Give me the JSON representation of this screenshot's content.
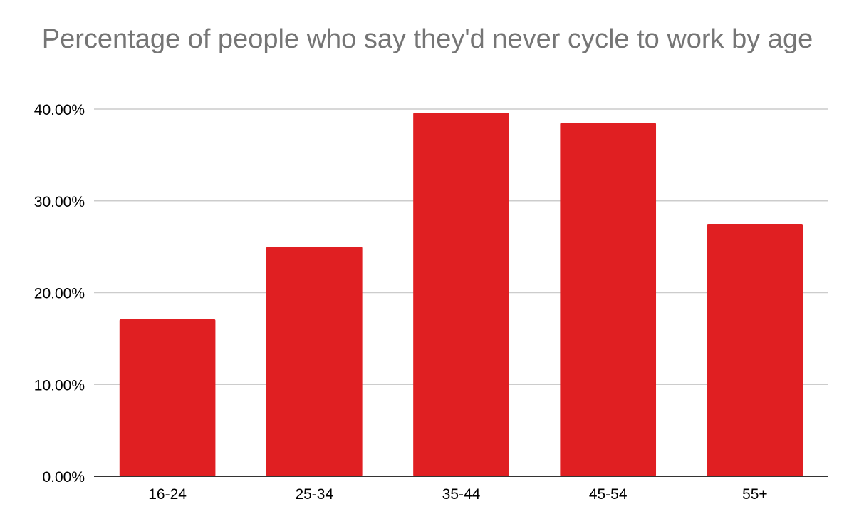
{
  "chart_data": {
    "type": "bar",
    "title": "Percentage of people who say they'd never cycle to work by age",
    "xlabel": "",
    "ylabel": "",
    "categories": [
      "16-24",
      "25-34",
      "35-44",
      "45-54",
      "55+"
    ],
    "values": [
      17.1,
      25.0,
      39.6,
      38.5,
      27.5
    ],
    "ylim": [
      0,
      40
    ],
    "yticks": [
      0,
      10,
      20,
      30,
      40
    ],
    "ytick_labels": [
      "0.00%",
      "10.00%",
      "20.00%",
      "30.00%",
      "40.00%"
    ],
    "grid": true,
    "legend": "none",
    "bar_color": "#e01f22",
    "grid_color": "#cccccc",
    "axis_color": "#333333"
  }
}
